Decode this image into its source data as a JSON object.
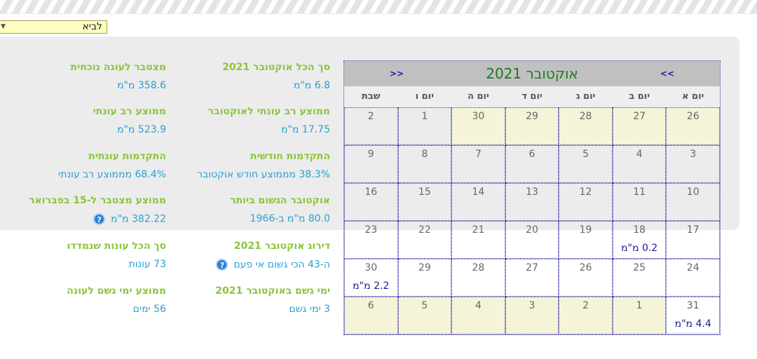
{
  "location_select": {
    "value": "לביא"
  },
  "stats_col1": [
    {
      "label": "סך הכל אוקטובר 2021",
      "value": "6.8 מ\"מ"
    },
    {
      "label": "ממוצע רב עונתי לאוקטובר",
      "value": "17.75 מ\"מ"
    },
    {
      "label": "התקדמות חודשית",
      "value": "38.3% מממוצע חודש אוקטובר"
    },
    {
      "label": "אוקטובר הגשום ביותר",
      "value": "80.0 מ\"מ ב-1966"
    },
    {
      "label": "דירוג אוקטובר 2021",
      "value": "ה-43 הכי גשום אי פעם",
      "help": true
    },
    {
      "label": "ימי גשם באוקטובר 2021",
      "value": "3 ימי גשם"
    }
  ],
  "stats_col2": [
    {
      "label": "מצטבר לעונה נוכחית",
      "value": "358.6 מ\"מ"
    },
    {
      "label": "ממוצע רב עונתי",
      "value": "523.9 מ\"מ"
    },
    {
      "label": "התקדמות עונתית",
      "value": "68.4% מממוצע רב עונתי"
    },
    {
      "label": "ממוצע מצטבר ל-15 בפברואר",
      "value": "382.22 מ\"מ",
      "help": true
    },
    {
      "label": "סך הכל עונות שנמדדו",
      "value": "73 עונות"
    },
    {
      "label": "ממוצע ימי גשם לעונה",
      "value": "56 ימים"
    }
  ],
  "calendar": {
    "title": "אוקטובר 2021",
    "prev": "<<",
    "next": ">>",
    "days": [
      "יום א",
      "יום ב",
      "יום ג",
      "יום ד",
      "יום ה",
      "יום ו",
      "שבת"
    ],
    "weeks": [
      [
        {
          "d": "26",
          "o": 1
        },
        {
          "d": "27",
          "o": 1
        },
        {
          "d": "28",
          "o": 1
        },
        {
          "d": "29",
          "o": 1
        },
        {
          "d": "30",
          "o": 1
        },
        {
          "d": "1"
        },
        {
          "d": "2"
        }
      ],
      [
        {
          "d": "3"
        },
        {
          "d": "4"
        },
        {
          "d": "5"
        },
        {
          "d": "6"
        },
        {
          "d": "7"
        },
        {
          "d": "8"
        },
        {
          "d": "9"
        }
      ],
      [
        {
          "d": "10"
        },
        {
          "d": "11"
        },
        {
          "d": "12"
        },
        {
          "d": "13"
        },
        {
          "d": "14"
        },
        {
          "d": "15"
        },
        {
          "d": "16"
        }
      ],
      [
        {
          "d": "17"
        },
        {
          "d": "18",
          "r": "0.2 מ\"מ"
        },
        {
          "d": "19"
        },
        {
          "d": "20"
        },
        {
          "d": "21"
        },
        {
          "d": "22"
        },
        {
          "d": "23"
        }
      ],
      [
        {
          "d": "24"
        },
        {
          "d": "25"
        },
        {
          "d": "26"
        },
        {
          "d": "27"
        },
        {
          "d": "28"
        },
        {
          "d": "29"
        },
        {
          "d": "30",
          "r": "2.2 מ\"מ"
        }
      ],
      [
        {
          "d": "31",
          "r": "4.4 מ\"מ"
        },
        {
          "d": "1",
          "o": 1
        },
        {
          "d": "2",
          "o": 1
        },
        {
          "d": "3",
          "o": 1
        },
        {
          "d": "4",
          "o": 1
        },
        {
          "d": "5",
          "o": 1
        },
        {
          "d": "6",
          "o": 1
        }
      ]
    ]
  }
}
